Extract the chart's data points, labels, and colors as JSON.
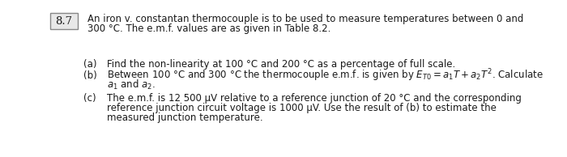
{
  "problem_number": "8.7",
  "main_text_line1": "An iron v. constantan thermocouple is to be used to measure temperatures between 0 and",
  "main_text_line2": "300 °C. The e.m.f. values are as given in Table 8.2.",
  "item_a_label": "(a)",
  "item_a_line1": "Find the non-linearity at 100 °C and 200 °C as a percentage of full scale.",
  "item_b_label": "(b)",
  "item_b_line1": "Between 100 °C and 300 °C the thermocouple e.m.f. is given by $E_{T0}=a_1T+a_2T^2$. Calculate",
  "item_b_line2": "$a_1$ and $a_2$.",
  "item_c_label": "(c)",
  "item_c_line1": "The e.m.f. is 12 500 μV relative to a reference junction of 20 °C and the corresponding",
  "item_c_line2": "reference junction circuit voltage is 1000 μV. Use the result of (b) to estimate the",
  "item_c_line3": "measured junction temperature.",
  "text_color": "#1a1a1a",
  "box_edge_color": "#888888",
  "font_size": 8.5,
  "problem_font_size": 9.5
}
